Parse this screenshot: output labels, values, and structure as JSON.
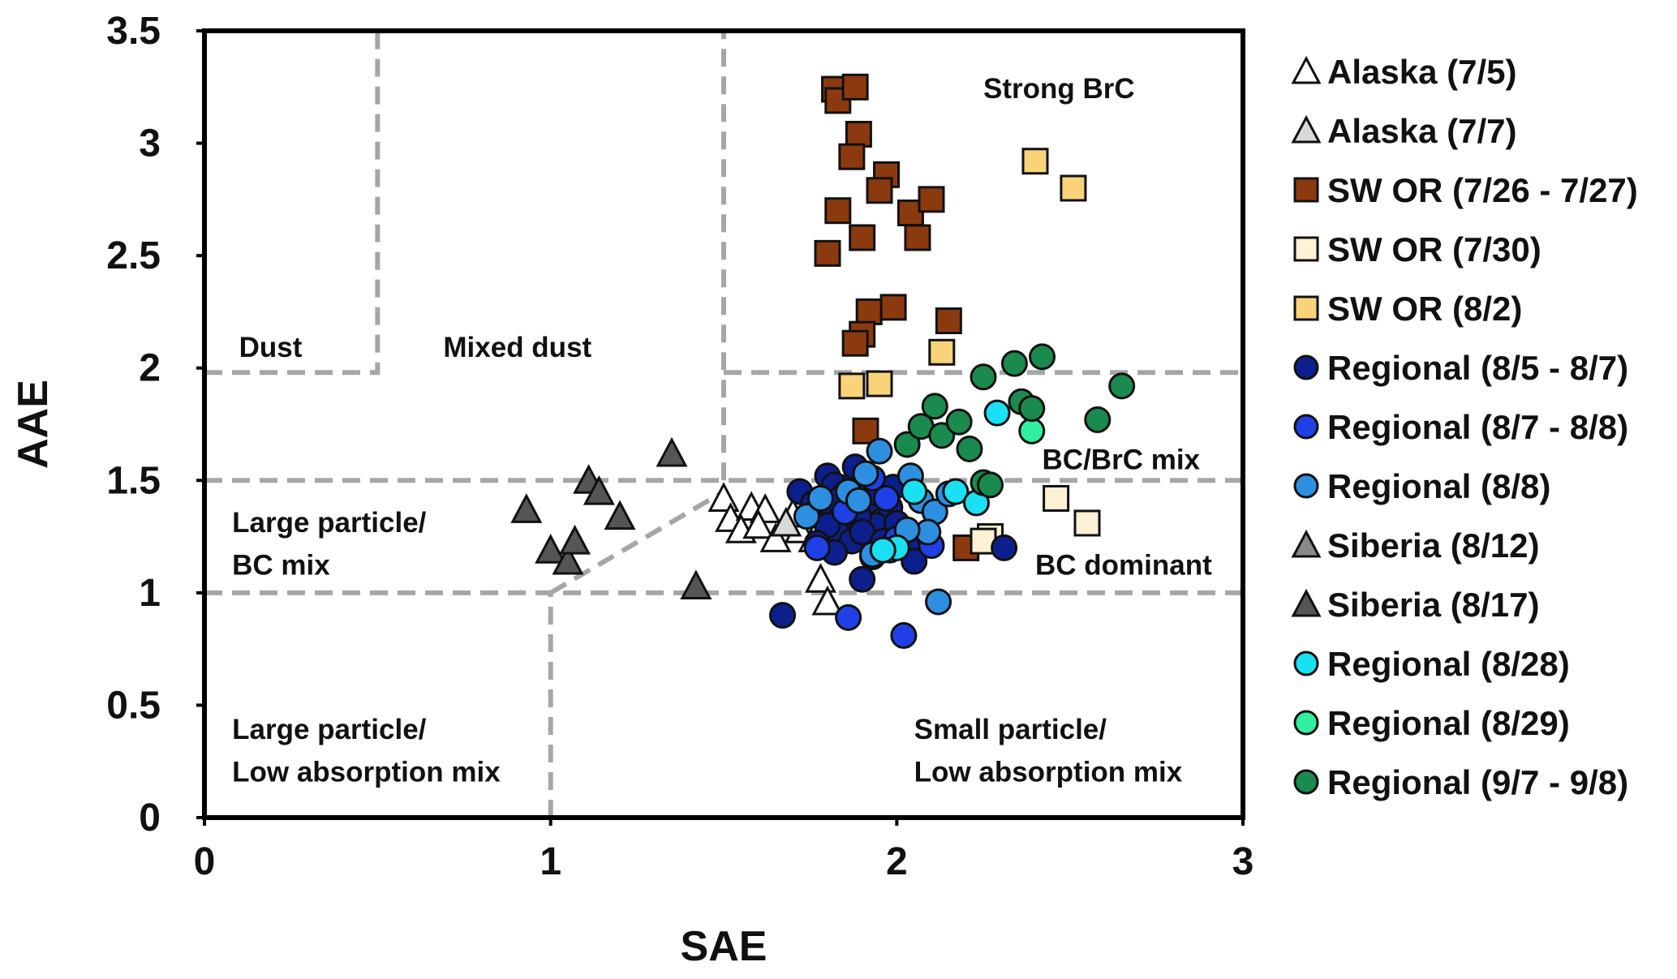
{
  "chart_data": {
    "type": "scatter",
    "title": "",
    "xlabel": "SAE",
    "ylabel": "AAE",
    "xlim": [
      0,
      3
    ],
    "ylim": [
      0,
      3.5
    ],
    "xticks": [
      "0",
      "1",
      "2",
      "3"
    ],
    "yticks": [
      "0",
      "0.5",
      "1",
      "1.5",
      "2",
      "2.5",
      "3",
      "3.5"
    ],
    "grid": false,
    "legend_position": "right",
    "boundary_lines": [
      {
        "x": [
          0,
          0.5,
          0.5
        ],
        "y": [
          1.98,
          1.98,
          3.5
        ]
      },
      {
        "x": [
          1.5,
          1.5
        ],
        "y": [
          1.5,
          3.5
        ]
      },
      {
        "x": [
          1.5,
          3
        ],
        "y": [
          1.98,
          1.98
        ]
      },
      {
        "x": [
          0,
          3
        ],
        "y": [
          1.5,
          1.5
        ]
      },
      {
        "x": [
          0,
          3
        ],
        "y": [
          1.0,
          1.0
        ]
      },
      {
        "x": [
          1.0,
          1.0
        ],
        "y": [
          0,
          1.0
        ]
      },
      {
        "x": [
          1.0,
          1.5
        ],
        "y": [
          1.0,
          1.45
        ]
      }
    ],
    "region_labels": [
      {
        "text": "Strong BrC",
        "x": 2.25,
        "y": 3.2
      },
      {
        "text": "Dust",
        "x": 0.1,
        "y": 2.05
      },
      {
        "text": "Mixed dust",
        "x": 0.69,
        "y": 2.05
      },
      {
        "text": "BC/BrC mix",
        "x": 2.42,
        "y": 1.55
      },
      {
        "text": "Large particle/",
        "x": 0.08,
        "y": 1.27
      },
      {
        "text": "BC mix",
        "x": 0.08,
        "y": 1.08
      },
      {
        "text": "BC dominant",
        "x": 2.4,
        "y": 1.08
      },
      {
        "text": "Large particle/",
        "x": 0.08,
        "y": 0.35
      },
      {
        "text": "Low absorption mix",
        "x": 0.08,
        "y": 0.16
      },
      {
        "text": "Small particle/",
        "x": 2.05,
        "y": 0.35
      },
      {
        "text": "Low absorption mix",
        "x": 2.05,
        "y": 0.16
      }
    ],
    "series": [
      {
        "name": "Alaska (7/5)",
        "marker": "triangle",
        "fill": "#ffffff",
        "points": [
          [
            1.5,
            1.42
          ],
          [
            1.52,
            1.33
          ],
          [
            1.58,
            1.38
          ],
          [
            1.62,
            1.37
          ],
          [
            1.55,
            1.28
          ],
          [
            1.6,
            1.3
          ],
          [
            1.65,
            1.24
          ],
          [
            1.72,
            1.28
          ],
          [
            1.7,
            1.35
          ],
          [
            1.78,
            1.06
          ],
          [
            1.8,
            0.96
          ]
        ]
      },
      {
        "name": "Alaska (7/7)",
        "marker": "triangle",
        "fill": "#d9d9d9",
        "points": [
          [
            1.68,
            1.31
          ],
          [
            1.76,
            1.24
          ]
        ]
      },
      {
        "name": "SW OR (7/26 - 7/27)",
        "marker": "square",
        "fill": "#8b3a0f",
        "points": [
          [
            1.82,
            3.24
          ],
          [
            1.83,
            3.19
          ],
          [
            1.88,
            3.25
          ],
          [
            1.89,
            3.04
          ],
          [
            1.87,
            2.94
          ],
          [
            1.97,
            2.86
          ],
          [
            1.95,
            2.79
          ],
          [
            1.83,
            2.7
          ],
          [
            1.9,
            2.58
          ],
          [
            1.8,
            2.51
          ],
          [
            2.04,
            2.69
          ],
          [
            2.1,
            2.75
          ],
          [
            2.06,
            2.58
          ],
          [
            1.92,
            2.25
          ],
          [
            1.99,
            2.27
          ],
          [
            1.9,
            2.15
          ],
          [
            1.88,
            2.11
          ],
          [
            2.15,
            2.21
          ],
          [
            1.91,
            1.72
          ],
          [
            2.2,
            1.2
          ]
        ]
      },
      {
        "name": "SW OR (7/30)",
        "marker": "square",
        "fill": "#fdf1d6",
        "points": [
          [
            2.46,
            1.42
          ],
          [
            2.55,
            1.31
          ],
          [
            2.27,
            1.25
          ],
          [
            2.25,
            1.23
          ]
        ]
      },
      {
        "name": "SW OR (8/2)",
        "marker": "square",
        "fill": "#f9d37a",
        "points": [
          [
            2.4,
            2.92
          ],
          [
            2.51,
            2.8
          ],
          [
            2.13,
            2.07
          ],
          [
            1.87,
            1.92
          ],
          [
            1.95,
            1.93
          ]
        ]
      },
      {
        "name": "Regional (8/5 - 8/7)",
        "marker": "circle",
        "fill": "#0d1f8c",
        "points": [
          [
            1.72,
            1.45
          ],
          [
            1.8,
            1.52
          ],
          [
            1.82,
            1.48
          ],
          [
            1.85,
            1.44
          ],
          [
            1.88,
            1.5
          ],
          [
            1.9,
            1.46
          ],
          [
            1.84,
            1.38
          ],
          [
            1.79,
            1.35
          ],
          [
            1.86,
            1.32
          ],
          [
            1.92,
            1.41
          ],
          [
            1.95,
            1.44
          ],
          [
            1.98,
            1.38
          ],
          [
            1.94,
            1.3
          ],
          [
            1.89,
            1.34
          ],
          [
            1.83,
            1.26
          ],
          [
            1.8,
            1.3
          ],
          [
            1.77,
            1.22
          ],
          [
            1.87,
            1.23
          ],
          [
            1.9,
            1.27
          ],
          [
            1.96,
            1.23
          ],
          [
            2.0,
            1.31
          ],
          [
            2.03,
            1.21
          ],
          [
            2.05,
            1.14
          ],
          [
            1.93,
            1.16
          ],
          [
            1.9,
            1.06
          ],
          [
            1.67,
            0.9
          ],
          [
            2.31,
            1.2
          ],
          [
            1.83,
            1.41
          ],
          [
            1.88,
            1.56
          ],
          [
            1.99,
            1.47
          ],
          [
            1.76,
            1.4
          ],
          [
            1.82,
            1.18
          ]
        ]
      },
      {
        "name": "Regional (8/7 - 8/8)",
        "marker": "circle",
        "fill": "#1e40e6",
        "points": [
          [
            1.77,
            1.2
          ],
          [
            1.85,
            1.36
          ],
          [
            1.93,
            1.51
          ],
          [
            2.0,
            1.24
          ],
          [
            2.1,
            1.21
          ],
          [
            1.86,
            0.89
          ],
          [
            2.02,
            0.81
          ],
          [
            1.97,
            1.42
          ]
        ]
      },
      {
        "name": "Regional (8/8)",
        "marker": "circle",
        "fill": "#2e8fe0",
        "points": [
          [
            1.74,
            1.34
          ],
          [
            1.78,
            1.42
          ],
          [
            1.86,
            1.45
          ],
          [
            1.91,
            1.53
          ],
          [
            1.95,
            1.63
          ],
          [
            2.04,
            1.52
          ],
          [
            2.07,
            1.41
          ],
          [
            2.11,
            1.36
          ],
          [
            2.09,
            1.27
          ],
          [
            2.03,
            1.28
          ],
          [
            1.98,
            1.19
          ],
          [
            1.93,
            1.17
          ],
          [
            2.12,
            0.96
          ],
          [
            2.15,
            1.44
          ],
          [
            1.89,
            1.41
          ]
        ]
      },
      {
        "name": "Siberia (8/12)",
        "marker": "triangle",
        "fill": "#888888",
        "points": []
      },
      {
        "name": "Siberia (8/17)",
        "marker": "triangle",
        "fill": "#555555",
        "points": [
          [
            0.93,
            1.37
          ],
          [
            1.0,
            1.19
          ],
          [
            1.05,
            1.14
          ],
          [
            1.07,
            1.23
          ],
          [
            1.11,
            1.5
          ],
          [
            1.14,
            1.45
          ],
          [
            1.2,
            1.34
          ],
          [
            1.35,
            1.62
          ],
          [
            1.42,
            1.03
          ]
        ]
      },
      {
        "name": "Regional (8/28)",
        "marker": "circle",
        "fill": "#19e0f2",
        "points": [
          [
            2.05,
            1.45
          ],
          [
            2.17,
            1.45
          ],
          [
            2.23,
            1.4
          ],
          [
            2.29,
            1.8
          ],
          [
            2.0,
            1.2
          ],
          [
            1.96,
            1.19
          ]
        ]
      },
      {
        "name": "Regional (8/29)",
        "marker": "circle",
        "fill": "#30f0a0",
        "points": [
          [
            2.39,
            1.72
          ]
        ]
      },
      {
        "name": "Regional (9/7 - 9/8)",
        "marker": "circle",
        "fill": "#1b8a4e",
        "points": [
          [
            2.03,
            1.66
          ],
          [
            2.07,
            1.74
          ],
          [
            2.11,
            1.83
          ],
          [
            2.13,
            1.7
          ],
          [
            2.18,
            1.76
          ],
          [
            2.21,
            1.64
          ],
          [
            2.25,
            1.96
          ],
          [
            2.34,
            2.02
          ],
          [
            2.42,
            2.05
          ],
          [
            2.36,
            1.85
          ],
          [
            2.39,
            1.82
          ],
          [
            2.58,
            1.77
          ],
          [
            2.65,
            1.92
          ],
          [
            2.25,
            1.49
          ],
          [
            2.27,
            1.48
          ]
        ]
      }
    ]
  }
}
